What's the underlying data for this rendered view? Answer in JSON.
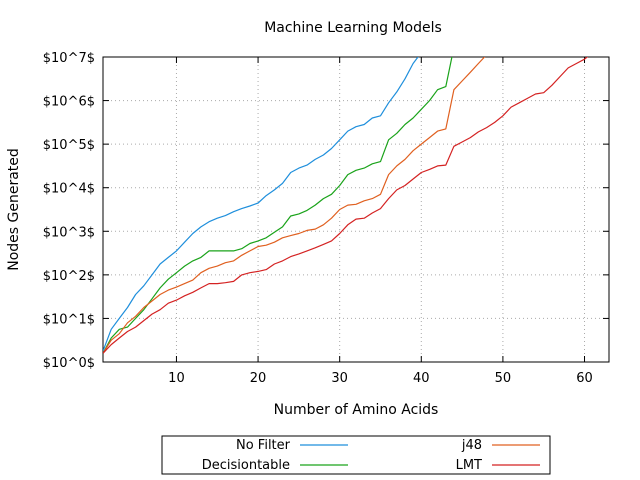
{
  "chart_data": {
    "type": "line",
    "title": "Machine Learning Models",
    "xlabel": "Number of Amino Acids",
    "ylabel": "Nodes Generated",
    "xlim": [
      1,
      63
    ],
    "ylim": [
      0,
      7
    ],
    "y_scale": "log10 (values are exponents)",
    "grid": true,
    "legend_position": "bottom, below plot",
    "x_ticks": [
      10,
      20,
      30,
      40,
      50,
      60
    ],
    "x_tick_labels": [
      "10",
      "20",
      "30",
      "40",
      "50",
      "60"
    ],
    "y_ticks": [
      0,
      1,
      2,
      3,
      4,
      5,
      6,
      7
    ],
    "y_tick_labels": [
      "$10^0$",
      "$10^1$",
      "$10^2$",
      "$10^3$",
      "$10^4$",
      "$10^5$",
      "$10^6$",
      "$10^7$"
    ],
    "series": [
      {
        "name": "No Filter",
        "color": "#1f8fdc",
        "x": [
          1,
          2,
          3,
          4,
          5,
          6,
          7,
          8,
          9,
          10,
          11,
          12,
          13,
          14,
          15,
          16,
          17,
          18,
          19,
          20,
          21,
          22,
          23,
          24,
          25,
          26,
          27,
          28,
          29,
          30,
          31,
          32,
          33,
          34,
          35,
          36,
          37,
          38,
          39,
          40,
          41,
          42,
          43
        ],
        "y": [
          0.25,
          0.75,
          1.0,
          1.25,
          1.55,
          1.75,
          2.0,
          2.25,
          2.4,
          2.55,
          2.75,
          2.95,
          3.1,
          3.22,
          3.3,
          3.36,
          3.45,
          3.52,
          3.58,
          3.65,
          3.82,
          3.95,
          4.1,
          4.35,
          4.45,
          4.52,
          4.65,
          4.75,
          4.9,
          5.1,
          5.3,
          5.4,
          5.45,
          5.6,
          5.65,
          5.95,
          6.2,
          6.5,
          6.85,
          7.1,
          7.22,
          7.38,
          7.62
        ]
      },
      {
        "name": "Decisiontable",
        "color": "#1aa31a",
        "x": [
          1,
          2,
          3,
          4,
          5,
          6,
          7,
          8,
          9,
          10,
          11,
          12,
          13,
          14,
          15,
          16,
          17,
          18,
          19,
          20,
          21,
          22,
          23,
          24,
          25,
          26,
          27,
          28,
          29,
          30,
          31,
          32,
          33,
          34,
          35,
          36,
          37,
          38,
          39,
          40,
          41,
          42,
          43,
          44,
          45
        ],
        "y": [
          0.2,
          0.55,
          0.75,
          0.8,
          1.0,
          1.2,
          1.45,
          1.7,
          1.9,
          2.05,
          2.2,
          2.32,
          2.4,
          2.55,
          2.55,
          2.55,
          2.55,
          2.6,
          2.72,
          2.78,
          2.85,
          2.98,
          3.1,
          3.35,
          3.4,
          3.48,
          3.6,
          3.75,
          3.85,
          4.05,
          4.3,
          4.4,
          4.45,
          4.55,
          4.6,
          5.1,
          5.25,
          5.45,
          5.6,
          5.8,
          6.0,
          6.25,
          6.32,
          7.22,
          7.4
        ]
      },
      {
        "name": "j48",
        "color": "#e06020",
        "x": [
          1,
          2,
          3,
          4,
          5,
          6,
          7,
          8,
          9,
          10,
          11,
          12,
          13,
          14,
          15,
          16,
          17,
          18,
          19,
          20,
          21,
          22,
          23,
          24,
          25,
          26,
          27,
          28,
          29,
          30,
          31,
          32,
          33,
          34,
          35,
          36,
          37,
          38,
          39,
          40,
          41,
          42,
          43,
          44,
          45,
          46,
          47,
          48,
          49,
          50,
          51,
          52
        ],
        "y": [
          0.2,
          0.5,
          0.65,
          0.9,
          1.05,
          1.25,
          1.4,
          1.55,
          1.65,
          1.72,
          1.8,
          1.88,
          2.05,
          2.15,
          2.2,
          2.28,
          2.32,
          2.45,
          2.55,
          2.65,
          2.68,
          2.75,
          2.85,
          2.9,
          2.95,
          3.02,
          3.05,
          3.15,
          3.3,
          3.5,
          3.6,
          3.62,
          3.7,
          3.75,
          3.85,
          4.3,
          4.5,
          4.65,
          4.85,
          5.0,
          5.15,
          5.3,
          5.35,
          6.25,
          6.45,
          6.65,
          6.85,
          7.05,
          7.2,
          7.35,
          7.65,
          7.75
        ]
      },
      {
        "name": "LMT",
        "color": "#d42222",
        "x": [
          1,
          2,
          3,
          4,
          5,
          6,
          7,
          8,
          9,
          10,
          11,
          12,
          13,
          14,
          15,
          16,
          17,
          18,
          19,
          20,
          21,
          22,
          23,
          24,
          25,
          26,
          27,
          28,
          29,
          30,
          31,
          32,
          33,
          34,
          35,
          36,
          37,
          38,
          39,
          40,
          41,
          42,
          43,
          44,
          45,
          46,
          47,
          48,
          49,
          50,
          51,
          52,
          53,
          54,
          55,
          56,
          57,
          58,
          59,
          60,
          61,
          62
        ],
        "y": [
          0.2,
          0.4,
          0.55,
          0.7,
          0.8,
          0.95,
          1.1,
          1.2,
          1.35,
          1.42,
          1.52,
          1.6,
          1.7,
          1.8,
          1.8,
          1.82,
          1.85,
          2.0,
          2.05,
          2.08,
          2.12,
          2.25,
          2.32,
          2.42,
          2.48,
          2.55,
          2.62,
          2.7,
          2.78,
          2.95,
          3.15,
          3.28,
          3.3,
          3.42,
          3.52,
          3.75,
          3.95,
          4.05,
          4.2,
          4.35,
          4.42,
          4.5,
          4.52,
          4.95,
          5.05,
          5.15,
          5.28,
          5.38,
          5.5,
          5.65,
          5.85,
          5.95,
          6.05,
          6.15,
          6.18,
          6.35,
          6.55,
          6.75,
          6.85,
          6.95,
          7.1,
          7.2
        ]
      }
    ]
  }
}
